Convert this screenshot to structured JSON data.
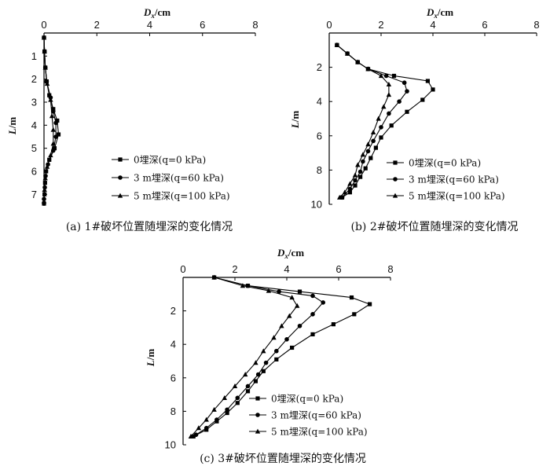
{
  "chart_data": [
    {
      "id": "a",
      "type": "line",
      "caption": "(a) 1#破坏位置随埋深的变化情况",
      "xlabel": {
        "main": "D",
        "sub": "x",
        "unit": "/cm"
      },
      "ylabel": {
        "main": "L",
        "unit": "/m"
      },
      "xlim": [
        0,
        8
      ],
      "ylim": [
        0,
        7.5
      ],
      "x_ticks": [
        0,
        2,
        4,
        6,
        8
      ],
      "y_ticks": [
        1,
        2,
        3,
        4,
        5,
        6,
        7
      ],
      "y_reversed": true,
      "x_axis_position": "top",
      "legend_position": "lower-right",
      "series": [
        {
          "name": "0埋深(q=0 kPa)",
          "marker": "square",
          "points": [
            [
              0,
              0.2
            ],
            [
              0.02,
              0.8
            ],
            [
              0.05,
              1.5
            ],
            [
              0.1,
              2.1
            ],
            [
              0.2,
              2.7
            ],
            [
              0.35,
              3.3
            ],
            [
              0.5,
              3.8
            ],
            [
              0.55,
              4.4
            ],
            [
              0.4,
              5.0
            ],
            [
              0.2,
              5.5
            ],
            [
              0.08,
              6.0
            ],
            [
              0.04,
              6.5
            ],
            [
              0.02,
              7.0
            ],
            [
              0,
              7.4
            ]
          ]
        },
        {
          "name": "3 m埋深(q=60 kPa)",
          "marker": "circle",
          "points": [
            [
              0,
              0.2
            ],
            [
              0.02,
              0.8
            ],
            [
              0.05,
              1.5
            ],
            [
              0.1,
              2.1
            ],
            [
              0.25,
              2.8
            ],
            [
              0.35,
              3.4
            ],
            [
              0.45,
              3.9
            ],
            [
              0.45,
              4.5
            ],
            [
              0.35,
              5.1
            ],
            [
              0.15,
              5.7
            ],
            [
              0.06,
              6.2
            ],
            [
              0.03,
              6.7
            ],
            [
              0,
              7.2
            ]
          ]
        },
        {
          "name": "5 m埋深(q=100 kPa)",
          "marker": "triangle",
          "points": [
            [
              0,
              0.2
            ],
            [
              0.02,
              0.8
            ],
            [
              0.05,
              1.5
            ],
            [
              0.12,
              2.2
            ],
            [
              0.25,
              2.9
            ],
            [
              0.3,
              3.6
            ],
            [
              0.35,
              4.2
            ],
            [
              0.35,
              4.8
            ],
            [
              0.25,
              5.3
            ],
            [
              0.12,
              5.8
            ],
            [
              0.05,
              6.3
            ],
            [
              0.02,
              6.8
            ],
            [
              0,
              7.3
            ]
          ]
        }
      ]
    },
    {
      "id": "b",
      "type": "line",
      "caption": "(b) 2#破坏位置随埋深的变化情况",
      "xlabel": {
        "main": "D",
        "sub": "x",
        "unit": "/cm"
      },
      "ylabel": {
        "main": "L",
        "unit": "/m"
      },
      "xlim": [
        0,
        8
      ],
      "ylim": [
        0,
        10
      ],
      "x_ticks": [
        0,
        2,
        4,
        6,
        8
      ],
      "y_ticks": [
        2,
        4,
        6,
        8,
        10
      ],
      "y_reversed": true,
      "x_axis_position": "top",
      "legend_position": "lower-right",
      "series": [
        {
          "name": "0埋深(q=0 kPa)",
          "marker": "square",
          "points": [
            [
              0.3,
              0.7
            ],
            [
              0.7,
              1.2
            ],
            [
              1.1,
              1.7
            ],
            [
              1.5,
              2.1
            ],
            [
              2.5,
              2.5
            ],
            [
              3.8,
              2.8
            ],
            [
              4.0,
              3.3
            ],
            [
              3.6,
              3.9
            ],
            [
              3.0,
              4.6
            ],
            [
              2.4,
              5.4
            ],
            [
              2.0,
              6.1
            ],
            [
              1.8,
              6.7
            ],
            [
              1.6,
              7.3
            ],
            [
              1.4,
              7.9
            ],
            [
              1.2,
              8.4
            ],
            [
              1.0,
              8.9
            ],
            [
              0.8,
              9.3
            ],
            [
              0.5,
              9.6
            ]
          ]
        },
        {
          "name": "3 m埋深(q=60 kPa)",
          "marker": "circle",
          "points": [
            [
              0.3,
              0.7
            ],
            [
              0.7,
              1.2
            ],
            [
              1.1,
              1.7
            ],
            [
              1.5,
              2.1
            ],
            [
              2.2,
              2.5
            ],
            [
              2.9,
              2.9
            ],
            [
              3.0,
              3.4
            ],
            [
              2.7,
              4.0
            ],
            [
              2.3,
              4.7
            ],
            [
              2.0,
              5.5
            ],
            [
              1.7,
              6.3
            ],
            [
              1.5,
              6.9
            ],
            [
              1.3,
              7.5
            ],
            [
              1.2,
              8.1
            ],
            [
              1.0,
              8.6
            ],
            [
              0.8,
              9.1
            ],
            [
              0.5,
              9.6
            ]
          ]
        },
        {
          "name": "5 m埋深(q=100 kPa)",
          "marker": "triangle",
          "points": [
            [
              0.3,
              0.7
            ],
            [
              0.7,
              1.2
            ],
            [
              1.1,
              1.7
            ],
            [
              1.5,
              2.1
            ],
            [
              2.0,
              2.5
            ],
            [
              2.3,
              3.0
            ],
            [
              2.3,
              3.6
            ],
            [
              2.1,
              4.3
            ],
            [
              1.9,
              5.0
            ],
            [
              1.7,
              5.8
            ],
            [
              1.5,
              6.5
            ],
            [
              1.3,
              7.1
            ],
            [
              1.1,
              7.7
            ],
            [
              1.0,
              8.3
            ],
            [
              0.8,
              8.8
            ],
            [
              0.6,
              9.3
            ],
            [
              0.4,
              9.6
            ]
          ]
        }
      ]
    },
    {
      "id": "c",
      "type": "line",
      "caption": "(c) 3#破坏位置随埋深的变化情况",
      "xlabel": {
        "main": "D",
        "sub": "x",
        "unit": "/cm"
      },
      "ylabel": {
        "main": "L",
        "unit": "/m"
      },
      "xlim": [
        0,
        8
      ],
      "ylim": [
        0,
        10
      ],
      "x_ticks": [
        0,
        2,
        4,
        6,
        8
      ],
      "y_ticks": [
        2,
        4,
        6,
        8,
        10
      ],
      "y_reversed": true,
      "x_axis_position": "top",
      "legend_position": "lower-right",
      "series": [
        {
          "name": "0埋深(q=0 kPa)",
          "marker": "square",
          "points": [
            [
              1.2,
              0.0
            ],
            [
              2.5,
              0.5
            ],
            [
              4.5,
              0.85
            ],
            [
              6.5,
              1.2
            ],
            [
              7.2,
              1.6
            ],
            [
              6.6,
              2.2
            ],
            [
              5.8,
              2.8
            ],
            [
              5.0,
              3.4
            ],
            [
              4.2,
              4.2
            ],
            [
              3.6,
              4.9
            ],
            [
              3.1,
              5.6
            ],
            [
              2.8,
              6.2
            ],
            [
              2.5,
              6.8
            ],
            [
              2.1,
              7.5
            ],
            [
              1.7,
              8.1
            ],
            [
              1.3,
              8.6
            ],
            [
              0.9,
              9.1
            ],
            [
              0.4,
              9.5
            ]
          ]
        },
        {
          "name": "3 m埋深(q=60 kPa)",
          "marker": "circle",
          "points": [
            [
              1.2,
              0.0
            ],
            [
              2.5,
              0.5
            ],
            [
              3.7,
              0.85
            ],
            [
              5.0,
              1.1
            ],
            [
              5.4,
              1.5
            ],
            [
              5.0,
              2.2
            ],
            [
              4.5,
              2.9
            ],
            [
              4.0,
              3.7
            ],
            [
              3.6,
              4.4
            ],
            [
              3.2,
              5.1
            ],
            [
              2.9,
              5.8
            ],
            [
              2.5,
              6.5
            ],
            [
              2.1,
              7.2
            ],
            [
              1.7,
              7.9
            ],
            [
              1.3,
              8.5
            ],
            [
              0.9,
              9.0
            ],
            [
              0.5,
              9.4
            ]
          ]
        },
        {
          "name": "5 m埋深(q=100 kPa)",
          "marker": "triangle",
          "points": [
            [
              1.2,
              0.0
            ],
            [
              2.3,
              0.5
            ],
            [
              3.3,
              0.8
            ],
            [
              4.2,
              1.2
            ],
            [
              4.4,
              1.7
            ],
            [
              4.1,
              2.3
            ],
            [
              3.8,
              2.9
            ],
            [
              3.5,
              3.6
            ],
            [
              3.1,
              4.4
            ],
            [
              2.8,
              5.1
            ],
            [
              2.4,
              5.8
            ],
            [
              2.0,
              6.5
            ],
            [
              1.6,
              7.2
            ],
            [
              1.2,
              7.9
            ],
            [
              0.9,
              8.5
            ],
            [
              0.6,
              9.0
            ],
            [
              0.3,
              9.5
            ]
          ]
        }
      ]
    }
  ]
}
